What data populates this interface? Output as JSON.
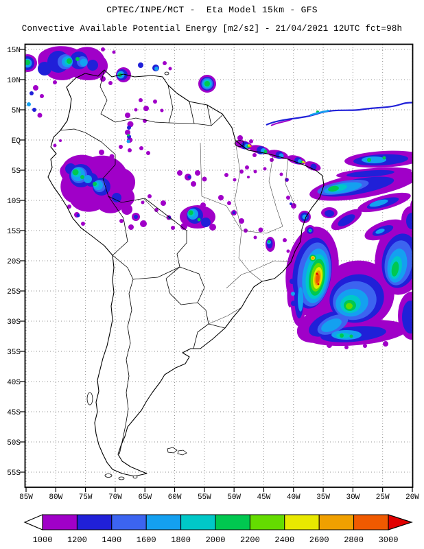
{
  "header": {
    "line1": "CPTEC/INPE/MCT -  Eta Model 15km - GFS",
    "line2": "Convective Available Potential Energy [m2/s2] - 21/04/2021 12UTC fct=98h"
  },
  "map": {
    "lat_labels": [
      "15N",
      "10N",
      "5N",
      "EQ",
      "5S",
      "10S",
      "15S",
      "20S",
      "25S",
      "30S",
      "35S",
      "40S",
      "45S",
      "50S",
      "55S"
    ],
    "lon_labels": [
      "85W",
      "80W",
      "75W",
      "70W",
      "65W",
      "60W",
      "55W",
      "50W",
      "45W",
      "40W",
      "35W",
      "30W",
      "25W",
      "20W"
    ]
  },
  "colorbar": {
    "tick_labels": [
      "1000",
      "1200",
      "1400",
      "1600",
      "1800",
      "2000",
      "2200",
      "2400",
      "2600",
      "2800",
      "3000"
    ],
    "segment_colors": [
      "#A000C8",
      "#2020D8",
      "#3C64F0",
      "#14A0F0",
      "#00C8C8",
      "#00C850",
      "#64DC00",
      "#E8E800",
      "#F0A000",
      "#F05A00"
    ],
    "below_min_color": "#FFFFFF",
    "above_max_color": "#E10000"
  }
}
